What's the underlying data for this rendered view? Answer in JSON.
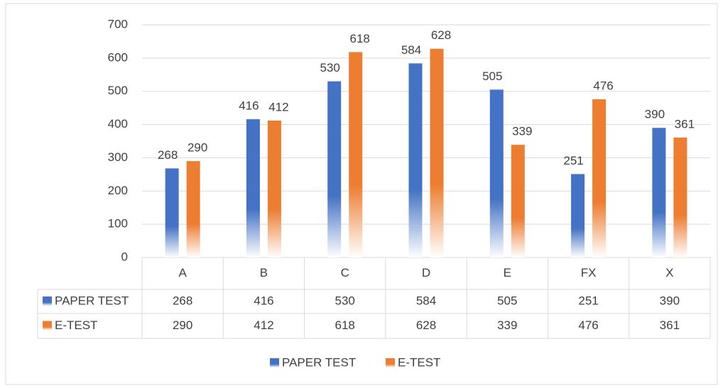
{
  "chart_data": {
    "type": "bar",
    "categories": [
      "A",
      "B",
      "C",
      "D",
      "E",
      "FX",
      "X"
    ],
    "series": [
      {
        "name": "PAPER TEST",
        "color": "#4472c4",
        "values": [
          268,
          416,
          530,
          584,
          505,
          251,
          390
        ]
      },
      {
        "name": "E-TEST",
        "color": "#ed7d31",
        "values": [
          290,
          412,
          618,
          628,
          339,
          476,
          361
        ]
      }
    ],
    "ylim": [
      0,
      700
    ],
    "yticks": [
      0,
      100,
      200,
      300,
      400,
      500,
      600,
      700
    ],
    "grid": true,
    "data_table": true,
    "legend": "bottom"
  }
}
